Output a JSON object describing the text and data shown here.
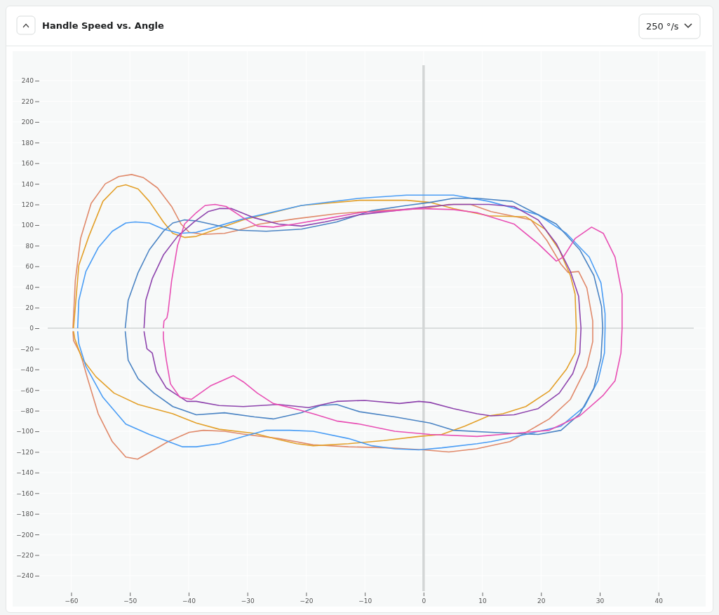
{
  "chart_data": {
    "type": "line",
    "title": "Handle Speed vs. Angle",
    "annotations": [
      "250 °/s"
    ],
    "xlim": [
      -64,
      46
    ],
    "ylim": [
      -255,
      255
    ],
    "xticks": [
      -60,
      -50,
      -40,
      -30,
      -20,
      -10,
      0,
      10,
      20,
      30,
      40
    ],
    "yticks": [
      -240,
      -220,
      -200,
      -180,
      -160,
      -140,
      -120,
      -100,
      -80,
      -60,
      -40,
      -20,
      0,
      20,
      40,
      60,
      80,
      100,
      120,
      140,
      160,
      180,
      200,
      220,
      240
    ],
    "grid": true,
    "series": [
      {
        "color": "#e0896a",
        "x": [
          -59.7,
          -59.3,
          -58.4,
          -56.6,
          -54.2,
          -51.9,
          -49.7,
          -47.7,
          -45.3,
          -42.9,
          -41.3,
          -39.9,
          -37.5,
          -33.9,
          -31.5,
          -27.9,
          -21.9,
          -14.8,
          -7.6,
          0,
          4.3,
          8,
          11.5,
          18.3,
          21.0,
          23.4,
          24.6,
          26.4,
          27.8,
          28.8,
          28.8,
          27.8,
          25.0,
          21.4,
          14.7,
          9,
          4.3,
          0,
          -6,
          -12.8,
          -18.8,
          -24.7,
          -30.3,
          -33.9,
          -37.5,
          -39.9,
          -43.5,
          -46.5,
          -48.7,
          -50.7,
          -53.0,
          -55.4,
          -57.2,
          -58.4,
          -59.6,
          -59.7
        ],
        "values": [
          0,
          46,
          87,
          121,
          140,
          147,
          149,
          146,
          136,
          118,
          101,
          93,
          91,
          92,
          95,
          101,
          106,
          111,
          114,
          116,
          120,
          120,
          113,
          105,
          85,
          62,
          54,
          55,
          39,
          7,
          -13,
          -37,
          -69,
          -88,
          -110,
          -117,
          -120,
          -118,
          -116,
          -115,
          -113,
          -107,
          -103,
          -100,
          -99,
          -101,
          -110,
          -120,
          -127,
          -125,
          -110,
          -83,
          -49,
          -25,
          -12,
          -3
        ]
      },
      {
        "color": "#e3a02a",
        "x": [
          -59.6,
          -58.7,
          -57.0,
          -54.6,
          -52.2,
          -50.7,
          -48.6,
          -46.7,
          -44.3,
          -42.7,
          -40.7,
          -38.7,
          -30.7,
          -20.8,
          -10.9,
          -2.9,
          1.1,
          5.1,
          11.1,
          17.4,
          20.7,
          23.1,
          25.0,
          25.8,
          26.0,
          25.8,
          24.3,
          21.4,
          17.4,
          13.5,
          11.1,
          7.0,
          3.1,
          -0.8,
          -6.8,
          -12.8,
          -18.8,
          -21.6,
          -24.7,
          -28.8,
          -34.8,
          -38.7,
          -42.7,
          -48.6,
          -52.7,
          -55.8,
          -58.2,
          -59.4,
          -59.6
        ],
        "values": [
          0,
          61,
          89,
          123,
          137,
          139,
          135,
          123,
          103,
          92,
          88,
          89,
          105,
          119,
          124,
          124,
          122,
          116,
          109,
          108,
          96,
          76,
          51,
          33,
          0,
          -24,
          -40,
          -61,
          -76,
          -83,
          -85,
          -95,
          -103,
          -105,
          -109,
          -112,
          -114,
          -112,
          -108,
          -102,
          -98,
          -92,
          -83,
          -74,
          -63,
          -47,
          -29,
          -10,
          -3
        ]
      },
      {
        "color": "#4a9df5",
        "x": [
          -58.9,
          -58.7,
          -57.5,
          -55.4,
          -53.0,
          -50.7,
          -49.1,
          -46.7,
          -44.3,
          -41.5,
          -38.7,
          -30.7,
          -20.8,
          -10.9,
          -2.9,
          5.1,
          11.1,
          19.5,
          24.3,
          28.2,
          30.2,
          30.9,
          30.9,
          30.8,
          29.7,
          27.4,
          23.4,
          17.4,
          11.5,
          9.1,
          3.1,
          -0.8,
          -4.9,
          -8.8,
          -12.8,
          -18.8,
          -22.8,
          -26.8,
          -30.7,
          -34.8,
          -38.7,
          -41.1,
          -46.7,
          -50.7,
          -54.6,
          -57.5,
          -58.7,
          -58.9
        ],
        "values": [
          0,
          27,
          55,
          78,
          94,
          102,
          103,
          102,
          96,
          92,
          93,
          106,
          119,
          126,
          129,
          129,
          123,
          110,
          92,
          69,
          44,
          14,
          0,
          -24,
          -51,
          -76,
          -95,
          -103,
          -110,
          -112,
          -116,
          -118,
          -117,
          -114,
          -107,
          -100,
          -99,
          -99,
          -105,
          -112,
          -115,
          -115,
          -103,
          -93,
          -67,
          -37,
          -15,
          -3
        ]
      },
      {
        "color": "#4b84c4",
        "x": [
          -50.8,
          -50.3,
          -48.6,
          -46.7,
          -44.3,
          -42.7,
          -40.7,
          -38.7,
          -31.5,
          -26.8,
          -20.8,
          -14.8,
          -8.8,
          -2.9,
          1.1,
          5.1,
          9.1,
          15.1,
          22.6,
          26.6,
          29.0,
          30.3,
          30.5,
          30.2,
          29.0,
          26.6,
          23.4,
          19.5,
          15.4,
          11.5,
          5.1,
          1.1,
          -4.9,
          -10.9,
          -14.8,
          -17.6,
          -20.8,
          -25.6,
          -28.8,
          -33.9,
          -38.7,
          -42.7,
          -45.9,
          -48.6,
          -50.3,
          -50.8
        ],
        "values": [
          0,
          27,
          54,
          76,
          94,
          102,
          105,
          104,
          95,
          94,
          96,
          103,
          114,
          119,
          122,
          126,
          126,
          123,
          101,
          76,
          51,
          21,
          0,
          -29,
          -58,
          -83,
          -99,
          -103,
          -102,
          -101,
          -99,
          -92,
          -86,
          -81,
          -74,
          -75,
          -82,
          -88,
          -86,
          -82,
          -84,
          -76,
          -63,
          -49,
          -31,
          -3
        ]
      },
      {
        "color": "#8e44ad",
        "x": [
          -47.6,
          -47.3,
          -46.2,
          -44.3,
          -41.9,
          -39.1,
          -36.7,
          -34.8,
          -32.7,
          -28.8,
          -24.7,
          -20.8,
          -16.8,
          -10.9,
          -4.9,
          1.1,
          5.1,
          11.1,
          15.4,
          19.5,
          22.6,
          25.0,
          26.4,
          26.8,
          26.6,
          25.4,
          23.1,
          19.5,
          15.4,
          11.5,
          9.1,
          5.1,
          1.1,
          -0.8,
          -4.1,
          -10.0,
          -14.8,
          -19.6,
          -24.7,
          -30.7,
          -34.8,
          -38.7,
          -40.3,
          -43.8,
          -45.5,
          -46.2,
          -47.1,
          -47.4,
          -47.6
        ],
        "values": [
          0,
          27,
          48,
          71,
          89,
          103,
          113,
          116,
          116,
          107,
          101,
          99,
          103,
          110,
          114,
          118,
          120,
          120,
          118,
          105,
          82,
          55,
          31,
          0,
          -24,
          -44,
          -63,
          -78,
          -84,
          -85,
          -83,
          -78,
          -72,
          -71,
          -73,
          -70,
          -71,
          -77,
          -74,
          -76,
          -75,
          -71,
          -71,
          -58,
          -42,
          -24,
          -20,
          -10,
          -3
        ]
      },
      {
        "color": "#e84fb4",
        "x": [
          -44.3,
          -44.2,
          -43.7,
          -43.5,
          -42.9,
          -41.9,
          -40.7,
          -38.7,
          -37.2,
          -35.5,
          -33.6,
          -30.7,
          -28.3,
          -25.6,
          -22.0,
          -16.8,
          -10.9,
          -4.9,
          -0.8,
          5.1,
          9.1,
          15.4,
          19.5,
          22.6,
          23.8,
          25.8,
          28.6,
          30.6,
          32.6,
          33.8,
          33.8,
          33.6,
          32.6,
          30.6,
          26.6,
          21.4,
          15.4,
          9.1,
          1.1,
          -4.9,
          -10.9,
          -14.8,
          -18.8,
          -22.0,
          -25.6,
          -28.3,
          -30.7,
          -32.4,
          -36.3,
          -39.5,
          -41.5,
          -43.1,
          -43.8,
          -44.3,
          -44.3
        ],
        "values": [
          0,
          7,
          10,
          16,
          46,
          80,
          101,
          112,
          119,
          120,
          118,
          107,
          99,
          98,
          101,
          106,
          112,
          114,
          116,
          115,
          112,
          101,
          82,
          65,
          69,
          87,
          98,
          92,
          69,
          33,
          0,
          -24,
          -51,
          -65,
          -85,
          -99,
          -102,
          -105,
          -103,
          -100,
          -93,
          -90,
          -83,
          -78,
          -73,
          -63,
          -52,
          -46,
          -56,
          -69,
          -67,
          -54,
          -31,
          -10,
          -3
        ]
      }
    ]
  }
}
